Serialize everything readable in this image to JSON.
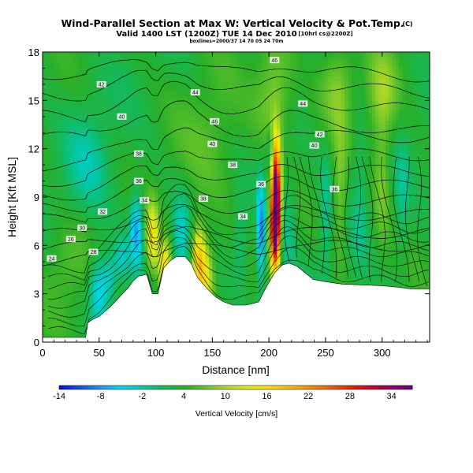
{
  "chart_data": {
    "type": "heatmap",
    "title": "Wind-Parallel Section at Max W: Vertical Velocity & Pot.Temp.",
    "title_mark": "(C)",
    "subtitle": "Valid 1400 LST (1200Z) TUE 14 Dec 2010",
    "subtitle_note": "[10hrl cs@2200Z]",
    "subsubtitle": "boxlines=2000/37 14 70 05 24 70m",
    "xlabel": "Distance [nm]",
    "ylabel": "Height [Kft MSL]",
    "xlim": [
      0,
      342
    ],
    "ylim": [
      0,
      18
    ],
    "xticks": [
      0,
      50,
      100,
      150,
      200,
      250,
      300
    ],
    "yticks": [
      0,
      3,
      6,
      9,
      12,
      15,
      18
    ],
    "colorbar": {
      "label": "Vertical Velocity [cm/s]",
      "min": -14,
      "max": 37,
      "tick_values": [
        -14,
        -8,
        -2,
        4,
        10,
        16,
        22,
        28,
        34
      ],
      "tick_labels": [
        "-14",
        "-8",
        "-2",
        "4",
        "10",
        "16",
        "22",
        "28",
        "34"
      ]
    },
    "terrain": [
      [
        0,
        0.3
      ],
      [
        38,
        0.3
      ],
      [
        40,
        1.2
      ],
      [
        44,
        1.4
      ],
      [
        50,
        1.6
      ],
      [
        55,
        1.9
      ],
      [
        60,
        2.2
      ],
      [
        64,
        2.5
      ],
      [
        68,
        2.8
      ],
      [
        72,
        3.1
      ],
      [
        76,
        3.4
      ],
      [
        80,
        3.8
      ],
      [
        85,
        4.1
      ],
      [
        92,
        4.2
      ],
      [
        97,
        3.0
      ],
      [
        102,
        3.0
      ],
      [
        107,
        4.6
      ],
      [
        112,
        5.0
      ],
      [
        118,
        5.3
      ],
      [
        126,
        5.3
      ],
      [
        131,
        4.9
      ],
      [
        137,
        4.0
      ],
      [
        142,
        3.6
      ],
      [
        147,
        3.2
      ],
      [
        153,
        2.8
      ],
      [
        160,
        2.5
      ],
      [
        168,
        2.3
      ],
      [
        180,
        2.3
      ],
      [
        186,
        2.4
      ],
      [
        191,
        2.5
      ],
      [
        196,
        3.2
      ],
      [
        200,
        3.7
      ],
      [
        205,
        4.3
      ],
      [
        212,
        4.8
      ],
      [
        218,
        4.9
      ],
      [
        225,
        4.7
      ],
      [
        232,
        4.3
      ],
      [
        239,
        3.9
      ],
      [
        246,
        3.8
      ],
      [
        255,
        3.7
      ],
      [
        265,
        3.6
      ],
      [
        300,
        3.5
      ],
      [
        315,
        3.4
      ],
      [
        325,
        3.3
      ],
      [
        342,
        3.3
      ]
    ],
    "w_features": [
      {
        "x": 83,
        "y": 7.0,
        "sx": 4,
        "sy": 1.6,
        "amp": -11
      },
      {
        "x": 70,
        "y": 5.2,
        "sx": 5,
        "sy": 1.0,
        "amp": -6
      },
      {
        "x": 50,
        "y": 3.3,
        "sx": 6,
        "sy": 1.5,
        "amp": -9
      },
      {
        "x": 60,
        "y": 4.0,
        "sx": 4,
        "sy": 1.0,
        "amp": -5
      },
      {
        "x": 97,
        "y": 6.5,
        "sx": 4,
        "sy": 1.5,
        "amp": 12
      },
      {
        "x": 108,
        "y": 4.5,
        "sx": 4,
        "sy": 1.2,
        "amp": 14
      },
      {
        "x": 138,
        "y": 5.2,
        "sx": 4,
        "sy": 1.5,
        "amp": 15
      },
      {
        "x": 145,
        "y": 4.0,
        "sx": 5,
        "sy": 1.5,
        "amp": 9
      },
      {
        "x": 122,
        "y": 6.5,
        "sx": 5,
        "sy": 1.8,
        "amp": -6
      },
      {
        "x": 175,
        "y": 6.0,
        "sx": 5,
        "sy": 2.0,
        "amp": -4
      },
      {
        "x": 193,
        "y": 6.8,
        "sx": 3,
        "sy": 2.4,
        "amp": -12
      },
      {
        "x": 206,
        "y": 9.0,
        "sx": 3,
        "sy": 2.3,
        "amp": 36
      },
      {
        "x": 205,
        "y": 6.5,
        "sx": 3,
        "sy": 1.5,
        "amp": 20
      },
      {
        "x": 201,
        "y": 11.8,
        "sx": 2,
        "sy": 1.0,
        "amp": -7
      },
      {
        "x": 217,
        "y": 7.5,
        "sx": 5,
        "sy": 2.5,
        "amp": -4
      },
      {
        "x": 250,
        "y": 8.0,
        "sx": 4,
        "sy": 3.0,
        "amp": -4
      },
      {
        "x": 263,
        "y": 9.0,
        "sx": 4,
        "sy": 3.0,
        "amp": 5
      },
      {
        "x": 280,
        "y": 9.5,
        "sx": 4,
        "sy": 3.5,
        "amp": -3
      },
      {
        "x": 300,
        "y": 10.0,
        "sx": 5,
        "sy": 3.0,
        "amp": 5
      },
      {
        "x": 318,
        "y": 9.0,
        "sx": 4,
        "sy": 3.0,
        "amp": -3
      },
      {
        "x": 205,
        "y": 15.5,
        "sx": 12,
        "sy": 2.5,
        "amp": 6
      },
      {
        "x": 260,
        "y": 16.0,
        "sx": 10,
        "sy": 2.0,
        "amp": 5
      },
      {
        "x": 300,
        "y": 15.5,
        "sx": 10,
        "sy": 2.0,
        "amp": 5
      },
      {
        "x": 40,
        "y": 11.0,
        "sx": 15,
        "sy": 2.5,
        "amp": -4
      },
      {
        "x": 20,
        "y": 5.0,
        "sx": 15,
        "sy": 2.0,
        "amp": 3
      },
      {
        "x": 150,
        "y": 12.0,
        "sx": 20,
        "sy": 3.0,
        "amp": 3
      }
    ],
    "theta_isentropes": [
      {
        "label": "24",
        "left": 5.2,
        "crest_shift": 0.2
      },
      {
        "label": "26",
        "left": 6.0,
        "crest_shift": 0.2
      },
      {
        "label": "28",
        "left": 6.9,
        "crest_shift": 0.3
      },
      {
        "label": "30",
        "left": 7.8,
        "crest_shift": 0.3
      },
      {
        "label": "32",
        "left": 8.6,
        "crest_shift": 0.35
      },
      {
        "label": "34",
        "left": 9.4,
        "crest_shift": 0.4
      },
      {
        "label": "36",
        "left": 10.3,
        "crest_shift": 0.45
      },
      {
        "label": "38",
        "left": 11.3,
        "crest_shift": 0.5
      },
      {
        "label": "40",
        "left": 13.0,
        "crest_shift": 0.5
      },
      {
        "label": "42",
        "left": 14.3,
        "crest_shift": 0.5
      },
      {
        "label": "44",
        "left": 15.6,
        "crest_shift": 0.4
      },
      {
        "label": "46",
        "left": 16.8,
        "crest_shift": 0.3
      }
    ],
    "theta_labels": [
      {
        "text": "24",
        "x": 8,
        "y": 5.2
      },
      {
        "text": "26",
        "x": 25,
        "y": 6.4
      },
      {
        "text": "28",
        "x": 45,
        "y": 5.6
      },
      {
        "text": "30",
        "x": 35,
        "y": 7.1
      },
      {
        "text": "32",
        "x": 53,
        "y": 8.1
      },
      {
        "text": "34",
        "x": 90,
        "y": 8.8
      },
      {
        "text": "36",
        "x": 85,
        "y": 10.0
      },
      {
        "text": "38",
        "x": 142,
        "y": 8.9
      },
      {
        "text": "34",
        "x": 177,
        "y": 7.8
      },
      {
        "text": "36",
        "x": 193,
        "y": 9.8
      },
      {
        "text": "36",
        "x": 258,
        "y": 9.5
      },
      {
        "text": "38",
        "x": 85,
        "y": 11.7
      },
      {
        "text": "38",
        "x": 168,
        "y": 11.0
      },
      {
        "text": "40",
        "x": 70,
        "y": 14.0
      },
      {
        "text": "40",
        "x": 150,
        "y": 12.3
      },
      {
        "text": "40",
        "x": 240,
        "y": 12.2
      },
      {
        "text": "42",
        "x": 52,
        "y": 16.0
      },
      {
        "text": "42",
        "x": 245,
        "y": 12.9
      },
      {
        "text": "44",
        "x": 135,
        "y": 15.5
      },
      {
        "text": "44",
        "x": 230,
        "y": 14.8
      },
      {
        "text": "46",
        "x": 152,
        "y": 13.7
      },
      {
        "text": "46",
        "x": 205,
        "y": 17.5
      }
    ]
  }
}
